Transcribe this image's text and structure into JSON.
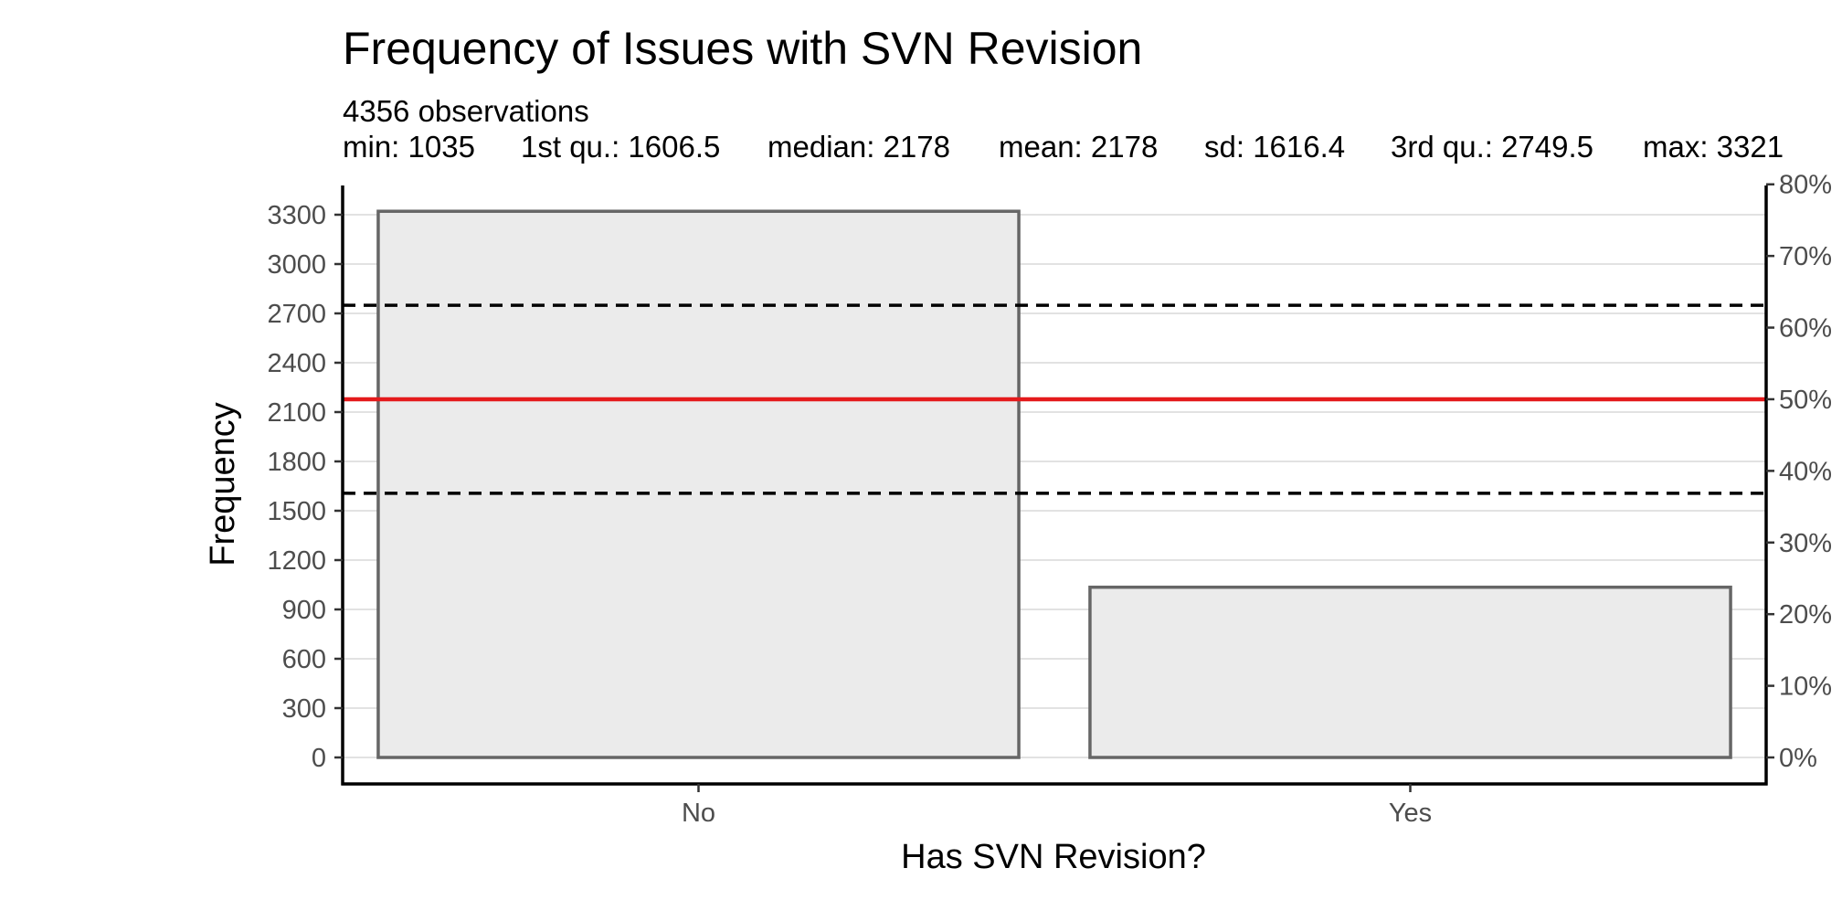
{
  "chart_data": {
    "type": "bar",
    "title": "Frequency of Issues with SVN Revision",
    "subtitle_line1": "4356 observations",
    "subtitle_stats": [
      "min: 1035",
      "1st qu.: 1606.5",
      "median: 2178",
      "mean: 2178",
      "sd: 1616.4",
      "3rd qu.: 2749.5",
      "max: 3321"
    ],
    "xlabel": "Has SVN Revision?",
    "ylabel": "Frequency",
    "categories": [
      "No",
      "Yes"
    ],
    "values": [
      3321,
      1035
    ],
    "ylim": [
      0,
      3500
    ],
    "y_ticks": [
      0,
      300,
      600,
      900,
      1200,
      1500,
      1800,
      2100,
      2400,
      2700,
      3000,
      3300
    ],
    "secondary_y_ticks": [
      "0%",
      "10%",
      "20%",
      "30%",
      "40%",
      "50%",
      "60%",
      "70%",
      "80%"
    ],
    "secondary_y_values": [
      0,
      0.1,
      0.2,
      0.3,
      0.4,
      0.5,
      0.6,
      0.7,
      0.8
    ],
    "secondary_total": 4356,
    "reference_lines": [
      {
        "name": "1st qu.",
        "value": 1606.5,
        "style": "dashed",
        "color": "#000000"
      },
      {
        "name": "mean",
        "value": 2178,
        "style": "solid",
        "color": "#e41a1c"
      },
      {
        "name": "3rd qu.",
        "value": 2749.5,
        "style": "dashed",
        "color": "#000000"
      }
    ],
    "bar_fill": "#ebebeb",
    "bar_stroke": "#666666",
    "grid": true,
    "grid_color": "#d9d9d9"
  }
}
